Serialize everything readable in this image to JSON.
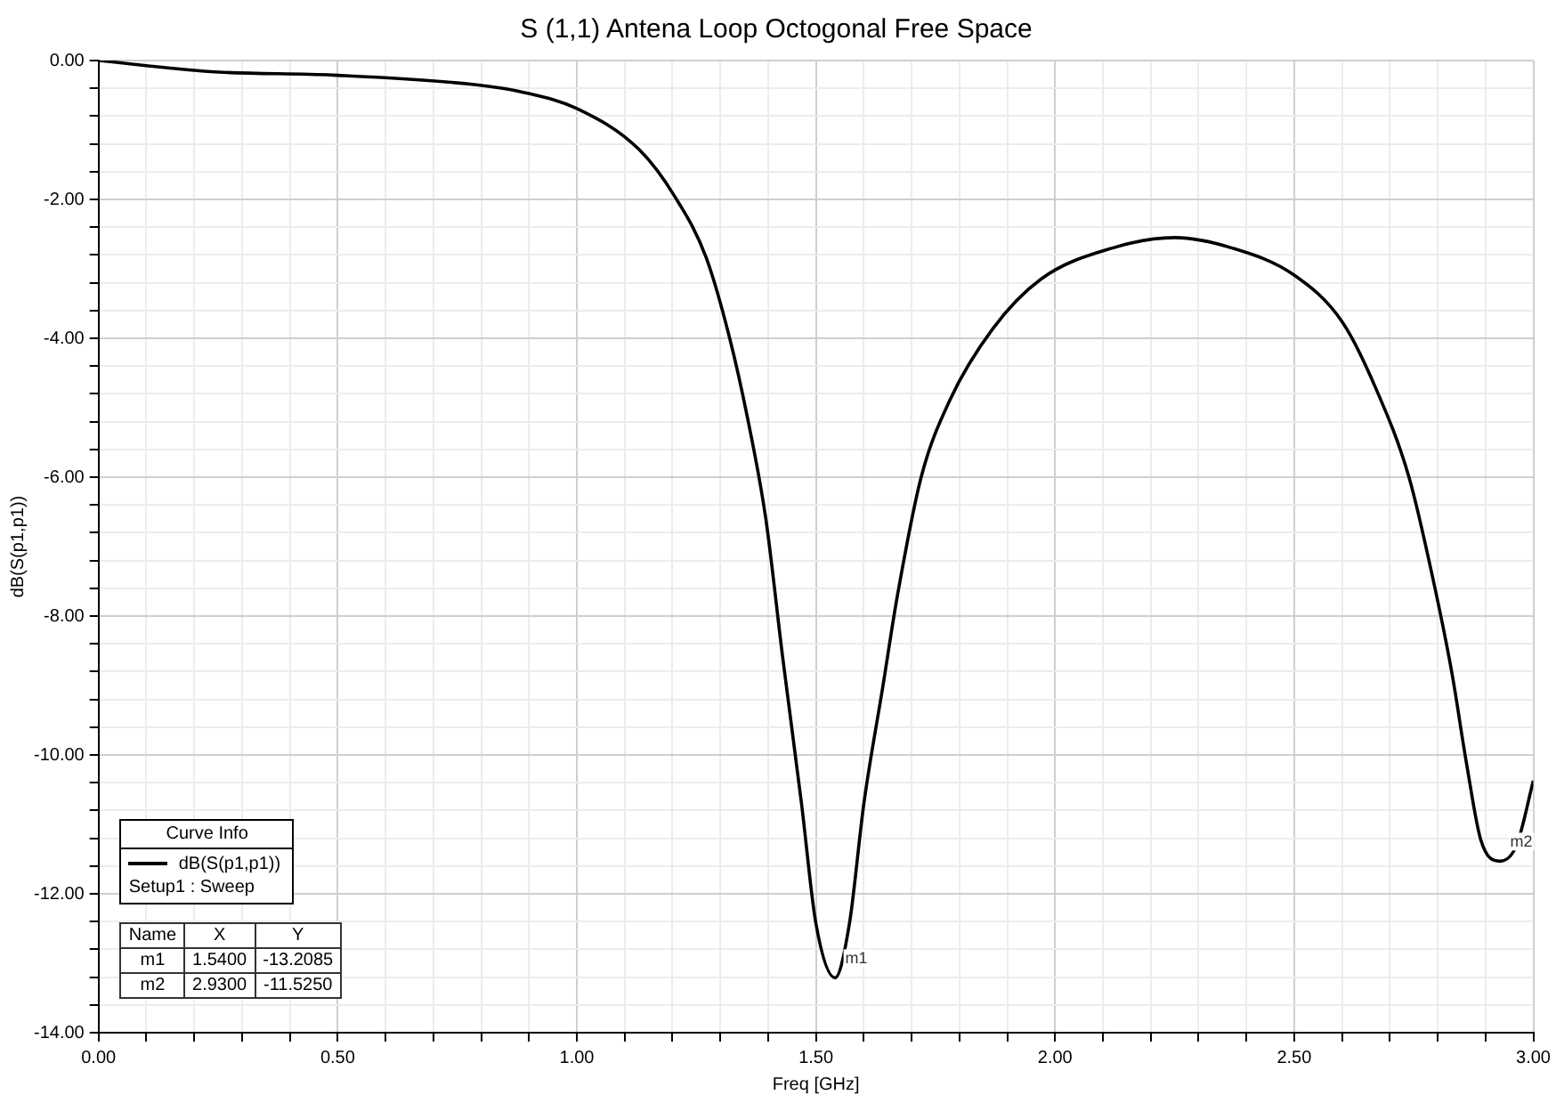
{
  "chart_data": {
    "type": "line",
    "title": "S (1,1) Antena Loop Octogonal Free Space",
    "xlabel": "Freq [GHz]",
    "ylabel": "dB(S(p1,p1))",
    "legend_title": "Curve Info",
    "legend": "bottom left",
    "grid": true,
    "marker": "none",
    "line_style": "solid",
    "xlim": [
      0,
      3
    ],
    "ylim": [
      -14,
      0
    ],
    "xticks": [
      {
        "value": 0,
        "label": "0.00"
      },
      {
        "value": 0.1,
        "label": null
      },
      {
        "value": 0.2,
        "label": null
      },
      {
        "value": 0.3,
        "label": null
      },
      {
        "value": 0.4,
        "label": null
      },
      {
        "value": 0.5,
        "label": "0.50"
      },
      {
        "value": 0.6,
        "label": null
      },
      {
        "value": 0.7,
        "label": null
      },
      {
        "value": 0.8,
        "label": null
      },
      {
        "value": 0.9,
        "label": null
      },
      {
        "value": 1,
        "label": "1.00"
      },
      {
        "value": 1.1,
        "label": null
      },
      {
        "value": 1.2,
        "label": null
      },
      {
        "value": 1.3,
        "label": null
      },
      {
        "value": 1.4,
        "label": null
      },
      {
        "value": 1.5,
        "label": "1.50"
      },
      {
        "value": 1.6,
        "label": null
      },
      {
        "value": 1.7,
        "label": null
      },
      {
        "value": 1.8,
        "label": null
      },
      {
        "value": 1.9,
        "label": null
      },
      {
        "value": 2,
        "label": "2.00"
      },
      {
        "value": 2.1,
        "label": null
      },
      {
        "value": 2.2,
        "label": null
      },
      {
        "value": 2.3,
        "label": null
      },
      {
        "value": 2.4,
        "label": null
      },
      {
        "value": 2.5,
        "label": "2.50"
      },
      {
        "value": 2.6,
        "label": null
      },
      {
        "value": 2.7,
        "label": null
      },
      {
        "value": 2.8,
        "label": null
      },
      {
        "value": 2.9,
        "label": null
      },
      {
        "value": 3,
        "label": "3.00"
      }
    ],
    "yticks": [
      {
        "value": 0,
        "label": "0.00"
      },
      {
        "value": -0.4,
        "label": null
      },
      {
        "value": -0.8,
        "label": null
      },
      {
        "value": -1.2,
        "label": null
      },
      {
        "value": -1.6,
        "label": null
      },
      {
        "value": -2,
        "label": "-2.00"
      },
      {
        "value": -2.4,
        "label": null
      },
      {
        "value": -2.8,
        "label": null
      },
      {
        "value": -3.2,
        "label": null
      },
      {
        "value": -3.6,
        "label": null
      },
      {
        "value": -4,
        "label": "-4.00"
      },
      {
        "value": -4.4,
        "label": null
      },
      {
        "value": -4.8,
        "label": null
      },
      {
        "value": -5.2,
        "label": null
      },
      {
        "value": -5.6,
        "label": null
      },
      {
        "value": -6,
        "label": "-6.00"
      },
      {
        "value": -6.4,
        "label": null
      },
      {
        "value": -6.8,
        "label": null
      },
      {
        "value": -7.2,
        "label": null
      },
      {
        "value": -7.6,
        "label": null
      },
      {
        "value": -8,
        "label": "-8.00"
      },
      {
        "value": -8.4,
        "label": null
      },
      {
        "value": -8.8,
        "label": null
      },
      {
        "value": -9.2,
        "label": null
      },
      {
        "value": -9.6,
        "label": null
      },
      {
        "value": -10,
        "label": "-10.00"
      },
      {
        "value": -10.4,
        "label": null
      },
      {
        "value": -10.8,
        "label": null
      },
      {
        "value": -11.2,
        "label": null
      },
      {
        "value": -11.6,
        "label": null
      },
      {
        "value": -12,
        "label": "-12.00"
      },
      {
        "value": -12.4,
        "label": null
      },
      {
        "value": -12.8,
        "label": null
      },
      {
        "value": -13.2,
        "label": null
      },
      {
        "value": -13.6,
        "label": null
      },
      {
        "value": -14,
        "label": "-14.00"
      }
    ],
    "series": [
      {
        "name": "dB(S(p1,p1))",
        "color": "#000000",
        "x": [
          0,
          0.235,
          0.49,
          0.79,
          0.89,
          1.0,
          1.13,
          1.205,
          1.27,
          1.32,
          1.357,
          1.395,
          1.43,
          1.47,
          1.5,
          1.54,
          1.57,
          1.6,
          1.64,
          1.67,
          1.72,
          1.78,
          1.87,
          1.97,
          2.12,
          2.25,
          2.37,
          2.5,
          2.6,
          2.67,
          2.74,
          2.79,
          2.83,
          2.86,
          2.89,
          2.93,
          2.965,
          3.0
        ],
        "values": [
          0,
          -0.16,
          -0.21,
          -0.35,
          -0.46,
          -0.69,
          -1.28,
          -1.96,
          -2.83,
          -4.01,
          -5.15,
          -6.59,
          -8.57,
          -10.71,
          -12.43,
          -13.21,
          -12.43,
          -10.71,
          -9.01,
          -7.72,
          -6.0,
          -4.89,
          -3.86,
          -3.15,
          -2.7,
          -2.55,
          -2.7,
          -3.09,
          -3.76,
          -4.71,
          -6.0,
          -7.46,
          -8.83,
          -10.11,
          -11.22,
          -11.53,
          -11.3,
          -10.37
        ]
      }
    ],
    "annotations": [
      "Setup1 : Sweep",
      "Name",
      "X",
      "Y",
      "m1",
      "1.5400",
      "-13.2085",
      "m2",
      "2.9300",
      "-11.5250",
      {
        "text": "m1",
        "x": 1.54,
        "y": -13.21
      },
      {
        "text": "m2",
        "x": 2.93,
        "y": -11.53
      }
    ]
  }
}
